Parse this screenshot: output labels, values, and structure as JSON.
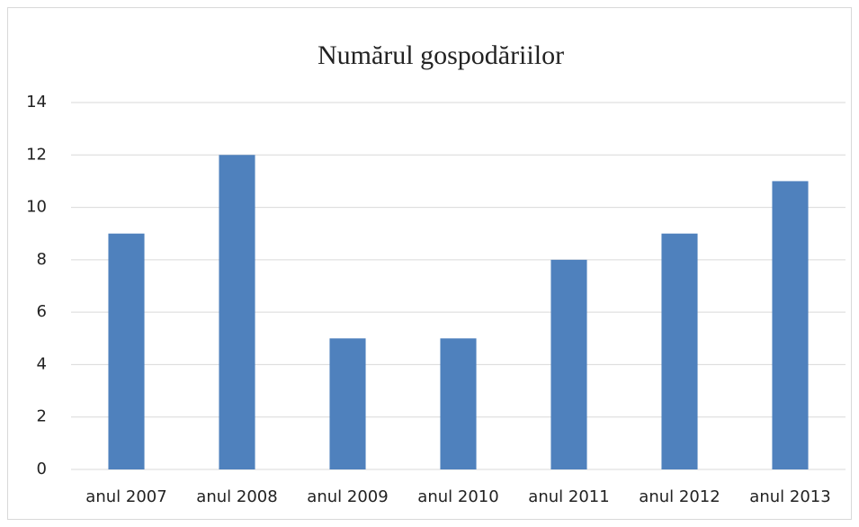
{
  "chart_data": {
    "type": "bar",
    "title": "Numărul gospodăriilor",
    "categories": [
      "anul 2007",
      "anul 2008",
      "anul 2009",
      "anul 2010",
      "anul 2011",
      "anul 2012",
      "anul 2013"
    ],
    "values": [
      9,
      12,
      5,
      5,
      8,
      9,
      11
    ],
    "color": "#4f81bd",
    "ylim": [
      0,
      14
    ],
    "yticks": [
      0,
      2,
      4,
      6,
      8,
      10,
      12,
      14
    ],
    "grid": true
  }
}
